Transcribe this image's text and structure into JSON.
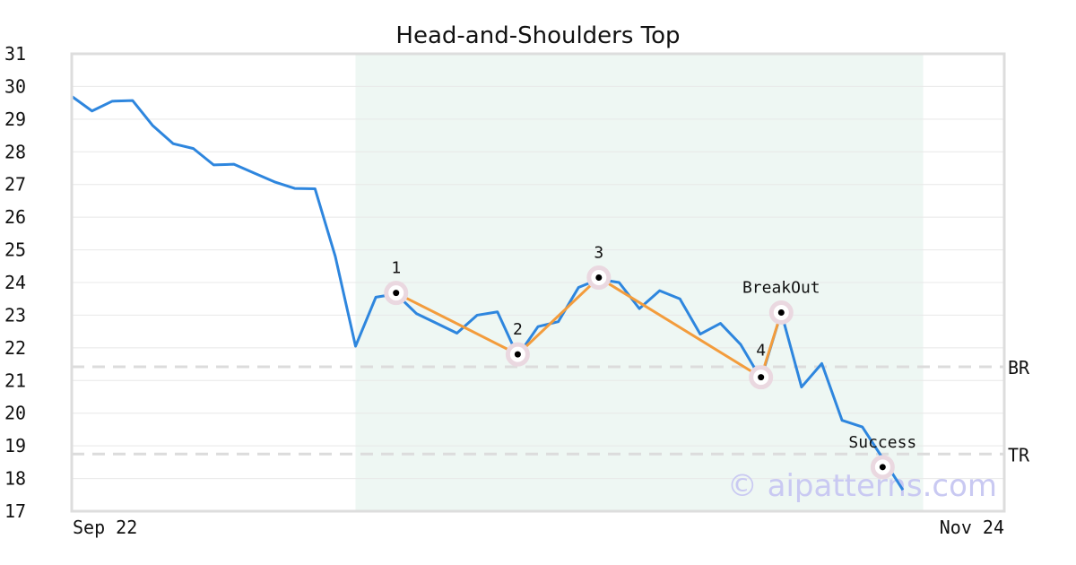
{
  "chart_data": {
    "type": "line",
    "title": "Head-and-Shoulders Top",
    "ylim": [
      17,
      31
    ],
    "yticks": [
      17,
      18,
      19,
      20,
      21,
      22,
      23,
      24,
      25,
      26,
      27,
      28,
      29,
      30,
      31
    ],
    "x_tick_labels": [
      {
        "index": 0,
        "label": "Sep 22"
      },
      {
        "index": 46,
        "label": "Nov 24"
      }
    ],
    "grid": true,
    "series": [
      {
        "color": "#2e86de",
        "values": [
          29.7,
          29.25,
          29.55,
          29.57,
          28.8,
          28.25,
          28.1,
          27.6,
          27.62,
          27.35,
          27.08,
          26.88,
          26.87,
          24.8,
          22.05,
          23.55,
          23.65,
          23.05,
          22.75,
          22.45,
          23.0,
          23.1,
          21.75,
          22.65,
          22.8,
          23.85,
          24.1,
          24.0,
          23.2,
          23.75,
          23.5,
          22.42,
          22.75,
          22.1,
          21.05,
          23.08,
          20.8,
          21.52,
          19.78,
          19.58,
          18.62,
          17.65
        ]
      }
    ],
    "highlight_region": {
      "from_index": 14,
      "to_index": 41,
      "color": "#eef7f3"
    },
    "pattern_line": {
      "color": "#f39c3c",
      "points": [
        {
          "index": 16,
          "value": 23.68,
          "label": "1"
        },
        {
          "index": 22,
          "value": 21.8,
          "label": "2"
        },
        {
          "index": 26,
          "value": 24.15,
          "label": "3"
        },
        {
          "index": 34,
          "value": 21.1,
          "label": "4"
        },
        {
          "index": 35,
          "value": 23.08,
          "label": "BreakOut"
        }
      ]
    },
    "target_marker": {
      "index": 40,
      "value": 18.35,
      "label": "Success"
    },
    "hlines": [
      {
        "value": 21.42,
        "label": "BR"
      },
      {
        "value": 18.75,
        "label": "TR"
      }
    ],
    "watermark": "© aipatterns.com"
  }
}
